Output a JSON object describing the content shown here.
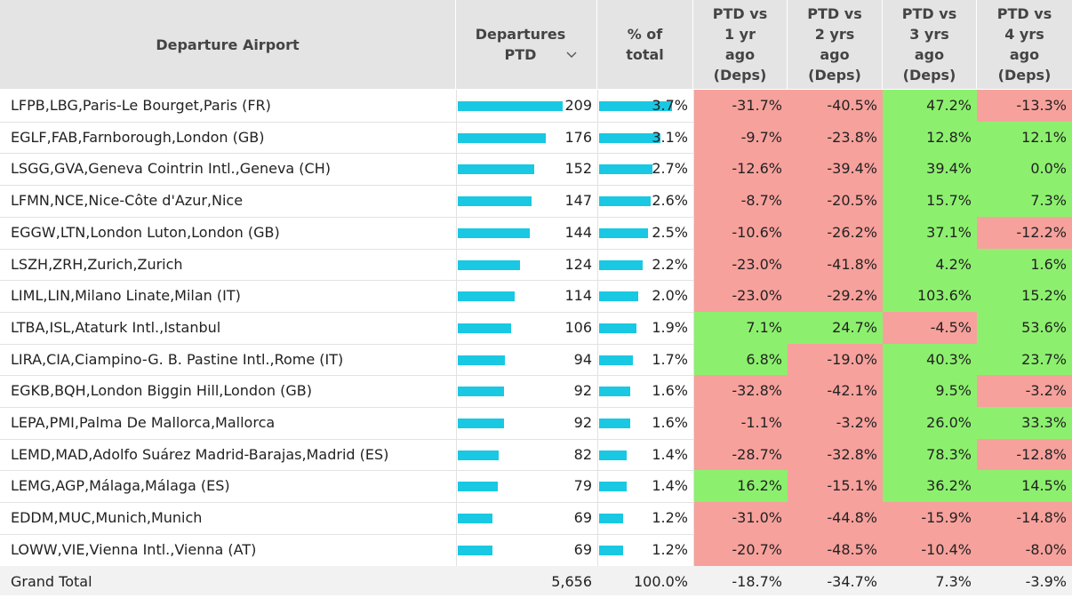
{
  "headers": {
    "airport": "Departure Airport",
    "departures": "Departures\nPTD",
    "pct": "% of\ntotal",
    "ptd1": "PTD vs\n1 yr\nago\n(Deps)",
    "ptd2": "PTD vs\n2 yrs\nago\n(Deps)",
    "ptd3": "PTD vs\n3 yrs\nago\n(Deps)",
    "ptd4": "PTD vs\n4 yrs\nago\n(Deps)"
  },
  "colors": {
    "bar": "#19c8e2",
    "positive": "#8cf06e",
    "negative": "#f7a19c"
  },
  "icons": {
    "sort": "chevron-down-icon"
  },
  "chart_data": {
    "type": "table",
    "bar_max_departures": 209,
    "bar_max_pct": 3.7,
    "rows": [
      {
        "airport": "LFPB,LBG,Paris-Le Bourget,Paris (FR)",
        "departures": 209,
        "dep_label": "209",
        "pct": 3.7,
        "pct_label": "3.7%",
        "yr1": "-31.7%",
        "yr2": "-40.5%",
        "yr3": "47.2%",
        "yr4": "-13.3%"
      },
      {
        "airport": "EGLF,FAB,Farnborough,London (GB)",
        "departures": 176,
        "dep_label": "176",
        "pct": 3.1,
        "pct_label": "3.1%",
        "yr1": "-9.7%",
        "yr2": "-23.8%",
        "yr3": "12.8%",
        "yr4": "12.1%"
      },
      {
        "airport": "LSGG,GVA,Geneva Cointrin Intl.,Geneva (CH)",
        "departures": 152,
        "dep_label": "152",
        "pct": 2.7,
        "pct_label": "2.7%",
        "yr1": "-12.6%",
        "yr2": "-39.4%",
        "yr3": "39.4%",
        "yr4": "0.0%"
      },
      {
        "airport": "LFMN,NCE,Nice-Côte d'Azur,Nice",
        "departures": 147,
        "dep_label": "147",
        "pct": 2.6,
        "pct_label": "2.6%",
        "yr1": "-8.7%",
        "yr2": "-20.5%",
        "yr3": "15.7%",
        "yr4": "7.3%"
      },
      {
        "airport": "EGGW,LTN,London Luton,London (GB)",
        "departures": 144,
        "dep_label": "144",
        "pct": 2.5,
        "pct_label": "2.5%",
        "yr1": "-10.6%",
        "yr2": "-26.2%",
        "yr3": "37.1%",
        "yr4": "-12.2%"
      },
      {
        "airport": "LSZH,ZRH,Zurich,Zurich",
        "departures": 124,
        "dep_label": "124",
        "pct": 2.2,
        "pct_label": "2.2%",
        "yr1": "-23.0%",
        "yr2": "-41.8%",
        "yr3": "4.2%",
        "yr4": "1.6%"
      },
      {
        "airport": "LIML,LIN,Milano Linate,Milan (IT)",
        "departures": 114,
        "dep_label": "114",
        "pct": 2.0,
        "pct_label": "2.0%",
        "yr1": "-23.0%",
        "yr2": "-29.2%",
        "yr3": "103.6%",
        "yr4": "15.2%"
      },
      {
        "airport": "LTBA,ISL,Ataturk Intl.,Istanbul",
        "departures": 106,
        "dep_label": "106",
        "pct": 1.9,
        "pct_label": "1.9%",
        "yr1": "7.1%",
        "yr2": "24.7%",
        "yr3": "-4.5%",
        "yr4": "53.6%"
      },
      {
        "airport": "LIRA,CIA,Ciampino-G. B. Pastine Intl.,Rome (IT)",
        "departures": 94,
        "dep_label": "94",
        "pct": 1.7,
        "pct_label": "1.7%",
        "yr1": "6.8%",
        "yr2": "-19.0%",
        "yr3": "40.3%",
        "yr4": "23.7%"
      },
      {
        "airport": "EGKB,BQH,London Biggin Hill,London (GB)",
        "departures": 92,
        "dep_label": "92",
        "pct": 1.6,
        "pct_label": "1.6%",
        "yr1": "-32.8%",
        "yr2": "-42.1%",
        "yr3": "9.5%",
        "yr4": "-3.2%"
      },
      {
        "airport": "LEPA,PMI,Palma De Mallorca,Mallorca",
        "departures": 92,
        "dep_label": "92",
        "pct": 1.6,
        "pct_label": "1.6%",
        "yr1": "-1.1%",
        "yr2": "-3.2%",
        "yr3": "26.0%",
        "yr4": "33.3%"
      },
      {
        "airport": "LEMD,MAD,Adolfo Suárez Madrid-Barajas,Madrid (ES)",
        "departures": 82,
        "dep_label": "82",
        "pct": 1.4,
        "pct_label": "1.4%",
        "yr1": "-28.7%",
        "yr2": "-32.8%",
        "yr3": "78.3%",
        "yr4": "-12.8%"
      },
      {
        "airport": "LEMG,AGP,Málaga,Málaga (ES)",
        "departures": 79,
        "dep_label": "79",
        "pct": 1.4,
        "pct_label": "1.4%",
        "yr1": "16.2%",
        "yr2": "-15.1%",
        "yr3": "36.2%",
        "yr4": "14.5%"
      },
      {
        "airport": "EDDM,MUC,Munich,Munich",
        "departures": 69,
        "dep_label": "69",
        "pct": 1.2,
        "pct_label": "1.2%",
        "yr1": "-31.0%",
        "yr2": "-44.8%",
        "yr3": "-15.9%",
        "yr4": "-14.8%"
      },
      {
        "airport": "LOWW,VIE,Vienna Intl.,Vienna (AT)",
        "departures": 69,
        "dep_label": "69",
        "pct": 1.2,
        "pct_label": "1.2%",
        "yr1": "-20.7%",
        "yr2": "-48.5%",
        "yr3": "-10.4%",
        "yr4": "-8.0%"
      }
    ],
    "total": {
      "label": "Grand Total",
      "departures": "5,656",
      "pct": "100.0%",
      "yr1": "-18.7%",
      "yr2": "-34.7%",
      "yr3": "7.3%",
      "yr4": "-3.9%"
    }
  }
}
